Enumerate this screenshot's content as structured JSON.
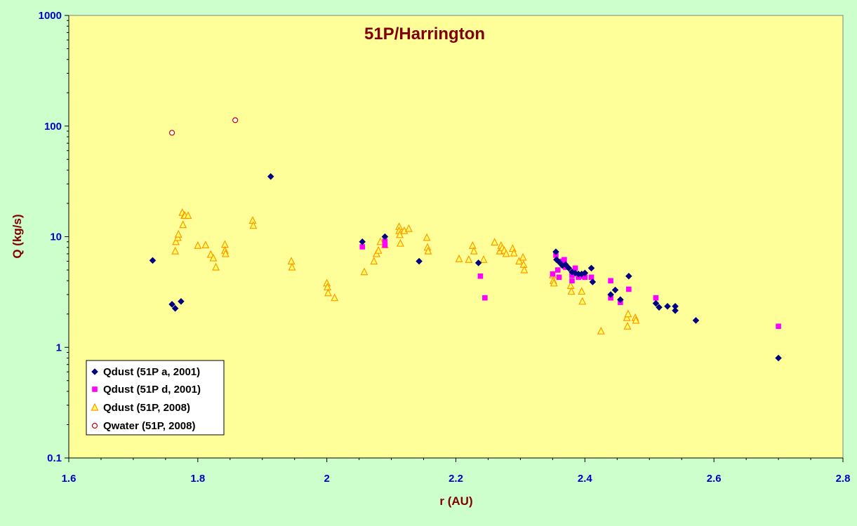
{
  "chart_data": {
    "type": "scatter",
    "title": "51P/Harrington",
    "xlabel": "r (AU)",
    "ylabel": "Q (kg/s)",
    "xlim": [
      1.6,
      2.8
    ],
    "ylim": [
      0.1,
      1000
    ],
    "yscale": "log",
    "x_ticks": [
      "1.6",
      "1.8",
      "2",
      "2.2",
      "2.4",
      "2.6",
      "2.8"
    ],
    "y_ticks": [
      "0.1",
      "1",
      "10",
      "100",
      "1000"
    ],
    "grid": false,
    "legend_position": "bottom-left",
    "colors": {
      "plot_bg": "#ffff99",
      "page_bg": "#ccffcc",
      "title": "#800000",
      "ticks": "#0000cc"
    },
    "series": [
      {
        "name": "Qdust (51P a, 2001)",
        "marker": "diamond",
        "color": "#000080",
        "x": [
          1.73,
          1.76,
          1.765,
          1.774,
          1.913,
          2.055,
          2.09,
          2.143,
          2.235,
          2.355,
          2.356,
          2.36,
          2.365,
          2.37,
          2.375,
          2.38,
          2.385,
          2.39,
          2.395,
          2.4,
          2.41,
          2.412,
          2.44,
          2.447,
          2.455,
          2.468,
          2.51,
          2.515,
          2.528,
          2.54,
          2.54,
          2.572,
          2.7
        ],
        "y": [
          6.1,
          2.45,
          2.25,
          2.6,
          35,
          9,
          10,
          6,
          5.8,
          7.3,
          6.2,
          5.9,
          5.5,
          5.6,
          5.2,
          4.8,
          4.7,
          4.6,
          4.6,
          4.7,
          5.2,
          3.9,
          3.0,
          3.3,
          2.7,
          4.4,
          2.5,
          2.3,
          2.35,
          2.35,
          2.15,
          1.75,
          0.8
        ]
      },
      {
        "name": "Qdust (51P d, 2001)",
        "marker": "square",
        "color": "#ff00ff",
        "x": [
          2.055,
          2.09,
          2.09,
          2.238,
          2.245,
          2.35,
          2.355,
          2.358,
          2.36,
          2.365,
          2.368,
          2.37,
          2.38,
          2.38,
          2.385,
          2.39,
          2.395,
          2.4,
          2.41,
          2.44,
          2.44,
          2.455,
          2.468,
          2.51,
          2.7
        ],
        "y": [
          8.1,
          9.1,
          8.4,
          4.4,
          2.8,
          4.6,
          6.8,
          5.0,
          4.3,
          6.0,
          6.2,
          5.3,
          4.0,
          4.5,
          5.2,
          4.3,
          4.4,
          4.3,
          4.3,
          4.0,
          2.8,
          2.55,
          3.35,
          2.8,
          1.55
        ]
      },
      {
        "name": "Qdust (51P, 2008)",
        "marker": "triangle",
        "color": "#ff9900",
        "x": [
          1.765,
          1.766,
          1.769,
          1.77,
          1.776,
          1.777,
          1.779,
          1.78,
          1.785,
          1.8,
          1.812,
          1.82,
          1.824,
          1.828,
          1.842,
          1.842,
          1.843,
          1.885,
          1.886,
          1.945,
          1.946,
          2.0,
          2.001,
          2.002,
          2.012,
          2.058,
          2.073,
          2.077,
          2.08,
          2.083,
          2.09,
          2.112,
          2.112,
          2.113,
          2.114,
          2.12,
          2.127,
          2.155,
          2.156,
          2.157,
          2.205,
          2.22,
          2.226,
          2.228,
          2.243,
          2.26,
          2.268,
          2.27,
          2.272,
          2.275,
          2.278,
          2.288,
          2.29,
          2.298,
          2.304,
          2.305,
          2.306,
          2.35,
          2.351,
          2.352,
          2.378,
          2.379,
          2.395,
          2.396,
          2.425,
          2.465,
          2.466,
          2.467,
          2.478,
          2.479
        ],
        "y": [
          7.4,
          9.0,
          9.8,
          10.5,
          16.5,
          12.8,
          15.5,
          15.5,
          15.5,
          8.3,
          8.4,
          6.9,
          6.4,
          5.3,
          8.5,
          7.5,
          7.0,
          14.0,
          12.6,
          6.0,
          5.3,
          3.8,
          3.5,
          3.1,
          2.8,
          4.8,
          6.0,
          7.0,
          7.5,
          9.0,
          8.4,
          12.3,
          11.3,
          10.4,
          8.7,
          11.3,
          11.8,
          9.8,
          8.0,
          7.4,
          6.3,
          6.2,
          8.3,
          7.4,
          6.2,
          8.9,
          7.4,
          8.3,
          7.9,
          7.5,
          7.0,
          7.8,
          7.1,
          6.0,
          6.5,
          5.6,
          5.0,
          4.5,
          4.0,
          3.8,
          3.6,
          3.2,
          3.2,
          2.6,
          1.4,
          1.85,
          1.55,
          2.0,
          1.85,
          1.75
        ]
      },
      {
        "name": "Qwater (51P, 2008)",
        "marker": "circle",
        "color": "#cc0000",
        "x": [
          1.76,
          1.858
        ],
        "y": [
          87,
          113
        ]
      }
    ]
  }
}
